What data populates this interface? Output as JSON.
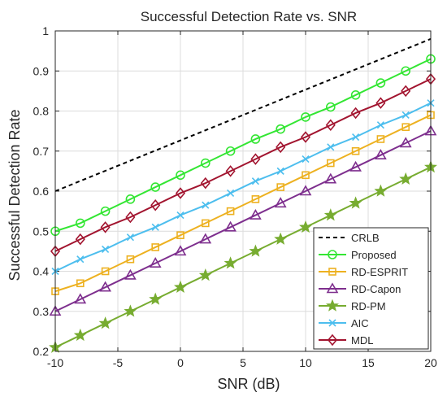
{
  "chart_data": {
    "type": "line",
    "title": "Successful Detection Rate vs. SNR",
    "xlabel": "SNR (dB)",
    "ylabel": "Successful Detection Rate",
    "xlim": [
      -10,
      20
    ],
    "ylim": [
      0.2,
      1
    ],
    "xticks": [
      -10,
      -5,
      0,
      5,
      10,
      15,
      20
    ],
    "yticks": [
      0.2,
      0.3,
      0.4,
      0.5,
      0.6,
      0.7,
      0.8,
      0.9,
      1
    ],
    "grid": true,
    "legend_position": "bottom-right",
    "x": [
      -10,
      -8,
      -6,
      -4,
      -2,
      0,
      2,
      4,
      6,
      8,
      10,
      12,
      14,
      16,
      18,
      20
    ],
    "series": [
      {
        "name": "CRLB",
        "color": "#000000",
        "dash": "dashed",
        "marker": "none",
        "x": [
          -10,
          20
        ],
        "values": [
          0.6,
          0.98
        ]
      },
      {
        "name": "Proposed",
        "color": "#33e633",
        "marker": "circle",
        "values": [
          0.5,
          0.52,
          0.55,
          0.58,
          0.61,
          0.64,
          0.67,
          0.7,
          0.73,
          0.755,
          0.785,
          0.81,
          0.84,
          0.87,
          0.9,
          0.93
        ]
      },
      {
        "name": "RD-ESPRIT",
        "color": "#edb120",
        "marker": "square",
        "values": [
          0.35,
          0.37,
          0.4,
          0.43,
          0.46,
          0.49,
          0.52,
          0.55,
          0.58,
          0.61,
          0.64,
          0.67,
          0.7,
          0.73,
          0.76,
          0.79
        ]
      },
      {
        "name": "RD-Capon",
        "color": "#7e2f8e",
        "marker": "triangle",
        "values": [
          0.3,
          0.33,
          0.36,
          0.39,
          0.42,
          0.45,
          0.48,
          0.51,
          0.54,
          0.57,
          0.6,
          0.63,
          0.66,
          0.69,
          0.72,
          0.75
        ]
      },
      {
        "name": "RD-PM",
        "color": "#77ac30",
        "marker": "star",
        "values": [
          0.21,
          0.24,
          0.27,
          0.3,
          0.33,
          0.36,
          0.39,
          0.42,
          0.45,
          0.48,
          0.51,
          0.54,
          0.57,
          0.6,
          0.63,
          0.66
        ]
      },
      {
        "name": "AIC",
        "color": "#4dbeee",
        "marker": "x",
        "values": [
          0.4,
          0.43,
          0.455,
          0.485,
          0.51,
          0.54,
          0.565,
          0.595,
          0.625,
          0.65,
          0.68,
          0.71,
          0.735,
          0.765,
          0.79,
          0.82
        ]
      },
      {
        "name": "MDL",
        "color": "#a2142f",
        "marker": "diamond",
        "values": [
          0.45,
          0.48,
          0.51,
          0.535,
          0.565,
          0.595,
          0.62,
          0.65,
          0.68,
          0.71,
          0.735,
          0.765,
          0.795,
          0.82,
          0.85,
          0.88
        ]
      }
    ]
  }
}
